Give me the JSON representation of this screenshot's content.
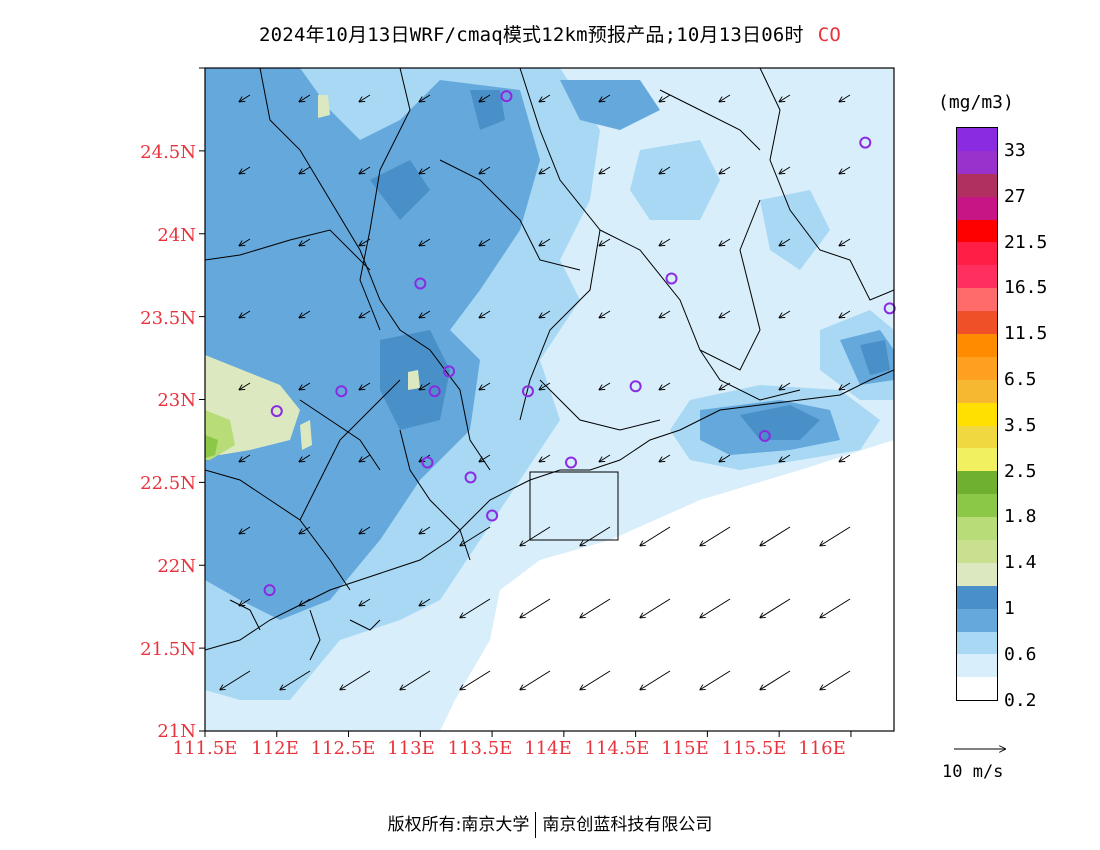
{
  "title": {
    "text": "2024年10月13日WRF/cmaq模式12km预报产品;10月13日06时",
    "pollutant": "CO"
  },
  "map": {
    "lat_labels": [
      "24.5N",
      "24N",
      "23.5N",
      "23N",
      "22.5N",
      "22N",
      "21.5N",
      "21N"
    ],
    "lon_labels": [
      "111.5E",
      "112E",
      "112.5E",
      "113E",
      "113.5E",
      "114E",
      "114.5E",
      "115E",
      "115.5E",
      "116E"
    ],
    "extent": {
      "lon_min": 111.5,
      "lon_max": 116.3,
      "lat_min": 21.0,
      "lat_max": 25.0
    },
    "wind": {
      "direction": "northeasterly",
      "speed_m_s_approx": [
        3,
        8
      ]
    },
    "stations": [
      {
        "lon": 113.6,
        "lat": 24.83
      },
      {
        "lon": 116.1,
        "lat": 24.55
      },
      {
        "lon": 113.0,
        "lat": 23.7
      },
      {
        "lon": 114.75,
        "lat": 23.73
      },
      {
        "lon": 116.27,
        "lat": 23.55
      },
      {
        "lon": 112.45,
        "lat": 23.05
      },
      {
        "lon": 112.0,
        "lat": 22.93
      },
      {
        "lon": 113.1,
        "lat": 23.05
      },
      {
        "lon": 113.2,
        "lat": 23.17
      },
      {
        "lon": 113.75,
        "lat": 23.05
      },
      {
        "lon": 114.5,
        "lat": 23.08
      },
      {
        "lon": 113.05,
        "lat": 22.62
      },
      {
        "lon": 113.35,
        "lat": 22.53
      },
      {
        "lon": 113.5,
        "lat": 22.3
      },
      {
        "lon": 114.05,
        "lat": 22.62
      },
      {
        "lon": 115.4,
        "lat": 22.78
      },
      {
        "lon": 111.95,
        "lat": 21.85
      }
    ]
  },
  "colorbar": {
    "units": "(mg/m3)",
    "tick_labels": [
      "33",
      "27",
      "21.5",
      "16.5",
      "11.5",
      "6.5",
      "3.5",
      "2.5",
      "1.8",
      "1.4",
      "1",
      "0.6",
      "0.2"
    ],
    "colors": [
      "#8a2be2",
      "#9932cc",
      "#b03060",
      "#c71585",
      "#ff0000",
      "#ff1e46",
      "#ff3060",
      "#ff6a6a",
      "#f05028",
      "#ff8c00",
      "#ffa020",
      "#f5b830",
      "#ffe000",
      "#f0d840",
      "#f0f060",
      "#70b030",
      "#8cc848",
      "#b8dc78",
      "#c8e090",
      "#dce8c0",
      "#4a90c8",
      "#64a8dc",
      "#a8d8f4",
      "#d8eefa",
      "#ffffff"
    ]
  },
  "reference_vector": {
    "label": "10 m/s"
  },
  "footer": {
    "left": "版权所有:南京大学",
    "right": "南京创蓝科技有限公司"
  }
}
